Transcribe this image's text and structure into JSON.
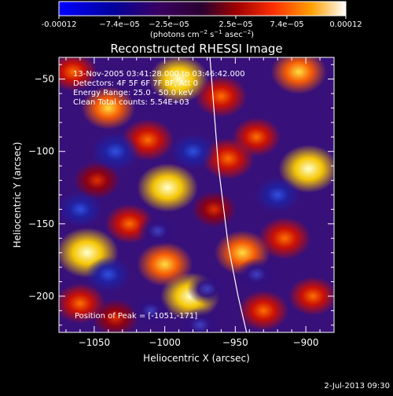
{
  "colorbar": {
    "tick_labels": [
      "-0.00012",
      "−7.4e−05",
      "−2.5e−05",
      "2.5e−05",
      "7.4e−05",
      "0.00012"
    ],
    "units_prefix": "(photons cm",
    "units_exp1": "−2",
    "units_mid": " s",
    "units_exp2": "−1",
    "units_mid2": " asec",
    "units_exp3": "−2",
    "units_suffix": ")"
  },
  "chart_data": {
    "type": "heatmap",
    "title": "Reconstructed RHESSI Image",
    "xlabel": "Heliocentric X (arcsec)",
    "ylabel": "Heliocentric Y (arcsec)",
    "xlim": [
      -1075,
      -880
    ],
    "ylim": [
      -225,
      -35
    ],
    "xticks": [
      -1050,
      -1000,
      -950,
      -900
    ],
    "xtick_labels": [
      "−1050",
      "−1000",
      "−950",
      "−900"
    ],
    "yticks": [
      -50,
      -100,
      -150,
      -200
    ],
    "ytick_labels": [
      "−50",
      "−100",
      "−150",
      "−200"
    ],
    "colorscale": "red-temperature with blue negatives",
    "value_range": [
      -0.00012,
      0.00012
    ],
    "annotations": [
      "13-Nov-2005 03:41:28.000 to 03:46:42.000",
      "Detectors: 4F 5F 6F 7F 8F, Att 0",
      "Energy Range: 25.0 - 50.0 keV",
      "Clean     Total counts: 5.54E+03"
    ],
    "peak_label": "Position of Peak = [-1051,-171]",
    "peak": [
      -1051,
      -171
    ],
    "blobs": [
      {
        "x": -1055,
        "y": -170,
        "v": 1.0
      },
      {
        "x": -998,
        "y": -125,
        "v": 0.95
      },
      {
        "x": -898,
        "y": -112,
        "v": 0.92
      },
      {
        "x": -990,
        "y": -50,
        "v": 0.9
      },
      {
        "x": -982,
        "y": -200,
        "v": 0.9
      },
      {
        "x": -1040,
        "y": -70,
        "v": 0.75
      },
      {
        "x": -1000,
        "y": -178,
        "v": 0.8
      },
      {
        "x": -945,
        "y": -170,
        "v": 0.8
      },
      {
        "x": -905,
        "y": -45,
        "v": 0.8
      },
      {
        "x": -1012,
        "y": -92,
        "v": 0.7
      },
      {
        "x": -960,
        "y": -62,
        "v": 0.7
      },
      {
        "x": -915,
        "y": -160,
        "v": 0.72
      },
      {
        "x": -955,
        "y": -105,
        "v": 0.7
      },
      {
        "x": -1060,
        "y": -205,
        "v": 0.65
      },
      {
        "x": -1025,
        "y": -150,
        "v": 0.62
      },
      {
        "x": -930,
        "y": -210,
        "v": 0.65
      },
      {
        "x": -1048,
        "y": -120,
        "v": 0.55
      },
      {
        "x": -895,
        "y": -200,
        "v": 0.6
      },
      {
        "x": -965,
        "y": -140,
        "v": 0.5
      },
      {
        "x": -1035,
        "y": -215,
        "v": 0.55
      },
      {
        "x": -935,
        "y": -90,
        "v": 0.6
      },
      {
        "x": -1065,
        "y": -45,
        "v": 0.6
      },
      {
        "x": -1035,
        "y": -100,
        "v": -0.6
      },
      {
        "x": -1060,
        "y": -140,
        "v": -0.5
      },
      {
        "x": -980,
        "y": -100,
        "v": -0.5
      },
      {
        "x": -1040,
        "y": -185,
        "v": -0.5
      },
      {
        "x": -1005,
        "y": -155,
        "v": -0.4
      },
      {
        "x": -920,
        "y": -130,
        "v": -0.5
      },
      {
        "x": -935,
        "y": -185,
        "v": -0.4
      },
      {
        "x": -975,
        "y": -220,
        "v": -0.45
      },
      {
        "x": -970,
        "y": -195,
        "v": -0.35
      },
      {
        "x": -1010,
        "y": -210,
        "v": -0.35
      }
    ],
    "limb": [
      [
        -968,
        -35
      ],
      [
        -962,
        -110
      ],
      [
        -955,
        -165
      ],
      [
        -948,
        -200
      ],
      [
        -942,
        -225
      ]
    ]
  },
  "footer": {
    "timestamp": "2-Jul-2013 09:30"
  }
}
